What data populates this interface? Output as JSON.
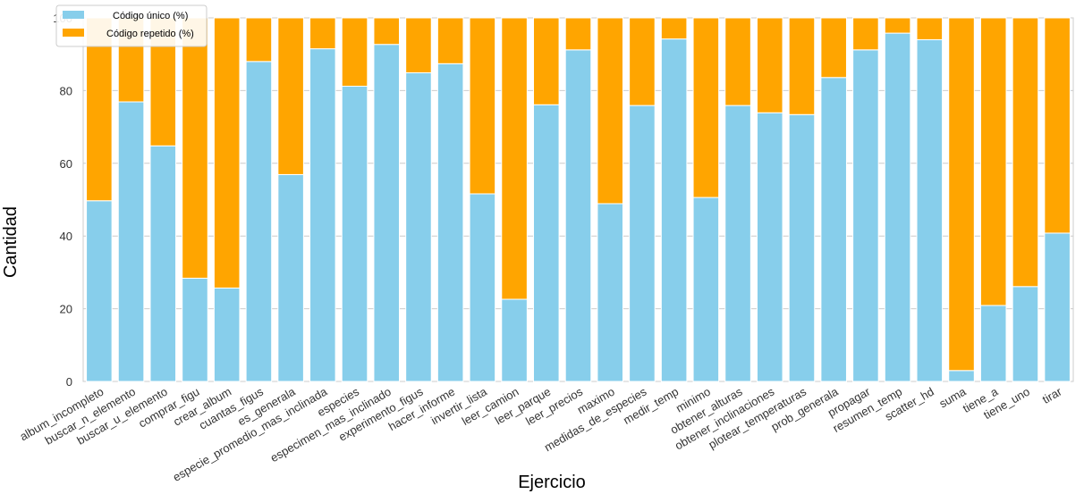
{
  "chart_data": {
    "type": "bar",
    "stacked": true,
    "title": "",
    "xlabel": "Ejercicio",
    "ylabel": "Cantidad",
    "ylim": [
      0,
      100
    ],
    "yticks": [
      0,
      20,
      40,
      60,
      80,
      100
    ],
    "grid": true,
    "legend_position": "top-left",
    "categories": [
      "album_incompleto",
      "buscar_n_elemento",
      "buscar_u_elemento",
      "comprar_figu",
      "crear_album",
      "cuantas_figus",
      "es_generala",
      "especie_promedio_mas_inclinada",
      "especies",
      "especimen_mas_inclinado",
      "experimento_figus",
      "hacer_informe",
      "invertir_lista",
      "leer_camion",
      "leer_parque",
      "leer_precios",
      "maximo",
      "medidas_de_especies",
      "medir_temp",
      "minimo",
      "obtener_alturas",
      "obtener_inclinaciones",
      "plotear_temperaturas",
      "prob_generala",
      "propagar",
      "resumen_temp",
      "scatter_hd",
      "suma",
      "tiene_a",
      "tiene_uno",
      "tirar"
    ],
    "series": [
      {
        "name": "Código único (%)",
        "color": "#87ceeb",
        "values": [
          49.7,
          76.9,
          64.8,
          28.4,
          25.7,
          88.0,
          56.9,
          91.5,
          81.2,
          92.7,
          84.9,
          87.4,
          51.6,
          22.6,
          76.1,
          91.2,
          48.9,
          75.9,
          94.2,
          50.6,
          75.9,
          73.9,
          73.4,
          83.6,
          91.2,
          95.8,
          94.0,
          3.0,
          20.9,
          26.1,
          40.8
        ]
      },
      {
        "name": "Código repetido (%)",
        "color": "#ffa500",
        "values": [
          50.3,
          23.1,
          35.2,
          71.6,
          74.3,
          12.0,
          43.1,
          8.5,
          18.8,
          7.3,
          15.1,
          12.6,
          48.4,
          77.4,
          23.9,
          8.8,
          51.1,
          24.1,
          5.8,
          49.4,
          24.1,
          26.1,
          26.6,
          16.4,
          8.8,
          4.2,
          6.0,
          97.0,
          79.1,
          73.9,
          59.2
        ]
      }
    ]
  }
}
